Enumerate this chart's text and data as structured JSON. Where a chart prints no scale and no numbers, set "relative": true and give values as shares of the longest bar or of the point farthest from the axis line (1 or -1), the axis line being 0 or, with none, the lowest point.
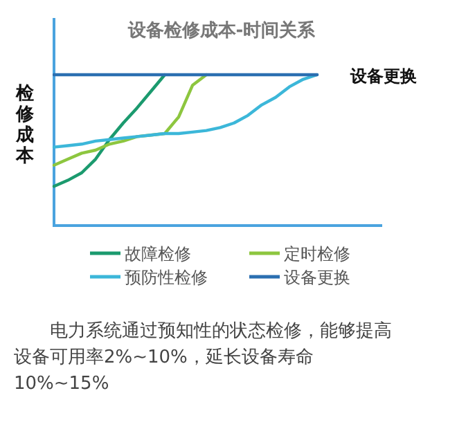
{
  "chart_data": {
    "type": "line",
    "title": "设备检修成本-时间关系",
    "ylabel": "检修成本",
    "relative": true,
    "categories": [
      null,
      null,
      null,
      null,
      null,
      null,
      null,
      null,
      null,
      null,
      null,
      null,
      null,
      null,
      null,
      null,
      null,
      null,
      null,
      null,
      null
    ],
    "series": [
      {
        "name": "故障检修",
        "color": "#1b9a6e",
        "values": [
          0.26,
          0.3,
          0.35,
          0.44,
          0.57,
          0.68,
          0.78,
          0.89,
          1,
          null,
          null,
          null,
          null,
          null,
          null,
          null,
          null,
          null,
          null,
          null,
          null
        ]
      },
      {
        "name": "定时检修",
        "color": "#8dc63f",
        "values": [
          0.4,
          0.44,
          0.48,
          0.5,
          0.54,
          0.56,
          0.59,
          0.6,
          0.61,
          0.72,
          0.93,
          1,
          null,
          null,
          null,
          null,
          null,
          null,
          null,
          null,
          null
        ]
      },
      {
        "name": "预防性检修",
        "color": "#3cb7d9",
        "values": [
          0.52,
          0.53,
          0.54,
          0.56,
          0.57,
          0.58,
          0.59,
          0.6,
          0.61,
          0.61,
          0.62,
          0.63,
          0.65,
          0.68,
          0.73,
          0.8,
          0.85,
          0.92,
          0.97,
          1,
          null
        ]
      },
      {
        "name": "设备更换",
        "color": "#2b6fb1",
        "values": [
          1,
          1,
          1,
          1,
          1,
          1,
          1,
          1,
          1,
          1,
          1,
          1,
          1,
          1,
          1,
          1,
          1,
          1,
          1,
          1,
          null
        ]
      }
    ],
    "legend": "bottom",
    "annotations": [
      "电力系统通过预知性的状态检修，能够提高设备可用率2%~10%，延长设备寿命10%~15%"
    ]
  }
}
